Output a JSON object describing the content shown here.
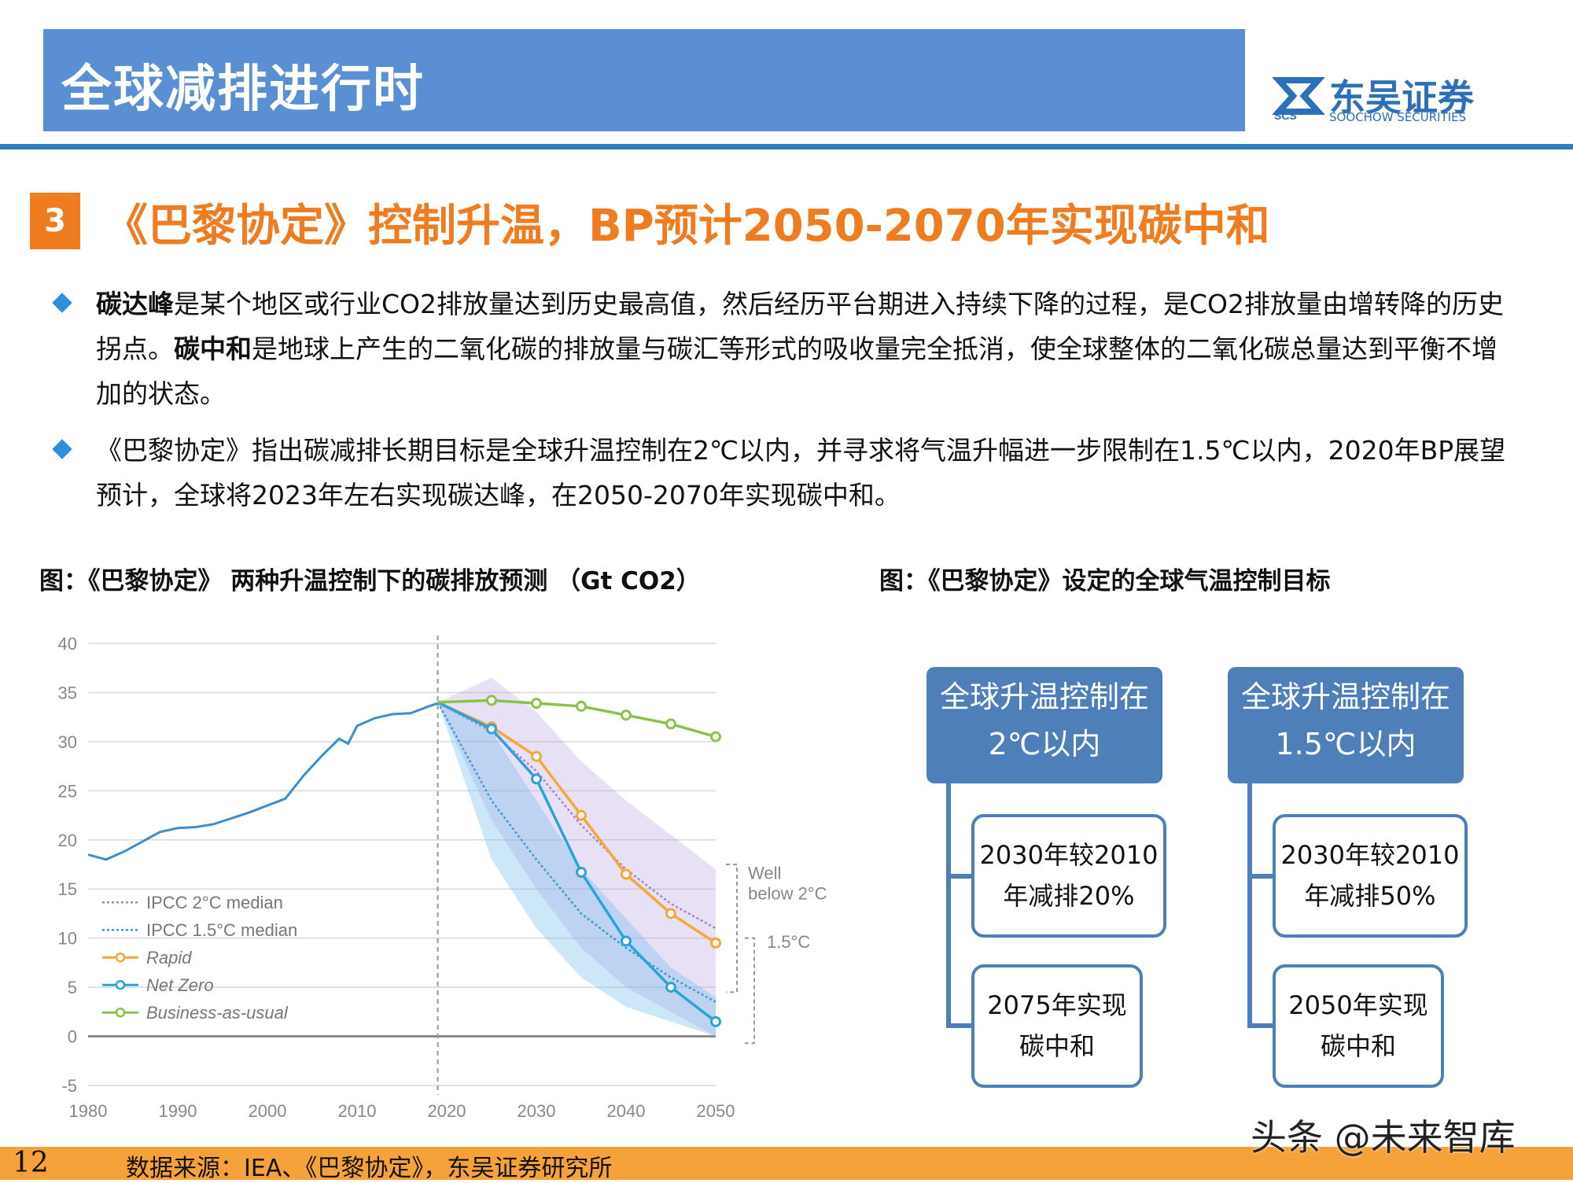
{
  "header": {
    "title": "全球减排进行时",
    "logo_cn": "东吴证券",
    "logo_en": "SOOCHOW SECURITIES",
    "logo_mark": "SCS"
  },
  "section": {
    "number": "3",
    "title": "《巴黎协定》控制升温，BP预计2050-2070年实现碳中和"
  },
  "bullets": {
    "b1": {
      "t1_bold": "碳达峰",
      "t1": "是某个地区或行业CO2排放量达到历史最高值，然后经历平台期进入持续下降的过程，是CO2排放量由增转降的历史拐点。",
      "t2_bold": "碳中和",
      "t2": "是地球上产生的二氧化碳的排放量与碳汇等形式的吸收量完全抵消，使全球整体的二氧化碳总量达到平衡不增加的状态。"
    },
    "b2": {
      "text": "《巴黎协定》指出碳减排长期目标是全球升温控制在2℃以内，并寻求将气温升幅进一步限制在1.5℃以内，2020年BP展望预计，全球将2023年左右实现碳达峰，在2050-2070年实现碳中和。"
    }
  },
  "figures": {
    "left_caption": "图：《巴黎协定》 两种升温控制下的碳排放预测 （Gt CO2）",
    "right_caption": "图：《巴黎协定》设定的全球气温控制目标"
  },
  "chart_data": {
    "type": "line",
    "title": "",
    "xlabel": "",
    "ylabel": "",
    "xlim": [
      1980,
      2050
    ],
    "ylim": [
      -5,
      40
    ],
    "x_ticks": [
      1980,
      1990,
      2000,
      2010,
      2020,
      2030,
      2040,
      2050
    ],
    "y_ticks": [
      -5,
      0,
      5,
      10,
      15,
      20,
      25,
      30,
      35,
      40
    ],
    "grid": "horizontal",
    "legend_position": "bottom-left",
    "vertical_marker_x": 2019,
    "bracket_labels": [
      "Well below 2°C",
      "1.5°C"
    ],
    "historical": {
      "x": [
        1980,
        1982,
        1984,
        1986,
        1988,
        1990,
        1992,
        1994,
        1996,
        1998,
        2000,
        2002,
        2004,
        2006,
        2008,
        2009,
        2010,
        2012,
        2014,
        2016,
        2018,
        2019
      ],
      "y": [
        18.5,
        18.0,
        18.8,
        19.8,
        20.8,
        21.2,
        21.3,
        21.6,
        22.2,
        22.8,
        23.5,
        24.2,
        26.5,
        28.5,
        30.3,
        29.8,
        31.6,
        32.4,
        32.8,
        32.9,
        33.6,
        33.9
      ]
    },
    "band_2C": {
      "x": [
        2019,
        2025,
        2030,
        2035,
        2040,
        2045,
        2050
      ],
      "upper": [
        34,
        36.5,
        33,
        28,
        24,
        20.5,
        17
      ],
      "lower": [
        34,
        22,
        15,
        9,
        5,
        2.5,
        0
      ]
    },
    "band_1_5C": {
      "x": [
        2019,
        2025,
        2030,
        2035,
        2040,
        2045,
        2050
      ],
      "upper": [
        34,
        31,
        24,
        17,
        12,
        7,
        4
      ],
      "lower": [
        34,
        18,
        11,
        6,
        3,
        1.5,
        0
      ]
    },
    "series": [
      {
        "name": "IPCC 2°C median",
        "color": "#a884c8",
        "style": "dotted",
        "x": [
          2019,
          2025,
          2030,
          2035,
          2040,
          2045,
          2050
        ],
        "y": [
          34,
          31,
          27,
          21.5,
          17,
          13.5,
          11
        ]
      },
      {
        "name": "IPCC 1.5°C median",
        "color": "#3b9ad6",
        "style": "dotted",
        "x": [
          2019,
          2025,
          2030,
          2035,
          2040,
          2045,
          2050
        ],
        "y": [
          34,
          24,
          18,
          12.5,
          9,
          6,
          3.5
        ]
      },
      {
        "name": "Rapid",
        "color": "#f2a93b",
        "style": "solid",
        "x": [
          2019,
          2025,
          2030,
          2035,
          2040,
          2045,
          2050
        ],
        "y": [
          34,
          31.5,
          28.5,
          22.5,
          16.5,
          12.5,
          9.5
        ]
      },
      {
        "name": "Net Zero",
        "color": "#2ba3d9",
        "style": "solid",
        "x": [
          2019,
          2025,
          2030,
          2035,
          2040,
          2045,
          2050
        ],
        "y": [
          34,
          31.3,
          26.2,
          16.7,
          9.7,
          5,
          1.5
        ]
      },
      {
        "name": "Business-as-usual",
        "color": "#8cc24a",
        "style": "solid",
        "x": [
          2019,
          2025,
          2030,
          2035,
          2040,
          2045,
          2050
        ],
        "y": [
          34,
          34.2,
          33.9,
          33.6,
          32.7,
          31.8,
          30.5
        ]
      }
    ]
  },
  "targets": {
    "left": {
      "goal": [
        "全球升温控制在",
        "2℃以内"
      ],
      "sub1": [
        "2030年较2010",
        "年减排20%"
      ],
      "sub2": [
        "2075年实现",
        "碳中和"
      ]
    },
    "right": {
      "goal": [
        "全球升温控制在",
        "1.5℃以内"
      ],
      "sub1": [
        "2030年较2010",
        "年减排50%"
      ],
      "sub2": [
        "2050年实现",
        "碳中和"
      ]
    },
    "colors": {
      "box": "#4e7fb8"
    }
  },
  "footer": {
    "page": "12",
    "source": "数据来源：IEA、《巴黎协定》，东吴证券研究所",
    "watermark": "头条 @未来智库"
  }
}
